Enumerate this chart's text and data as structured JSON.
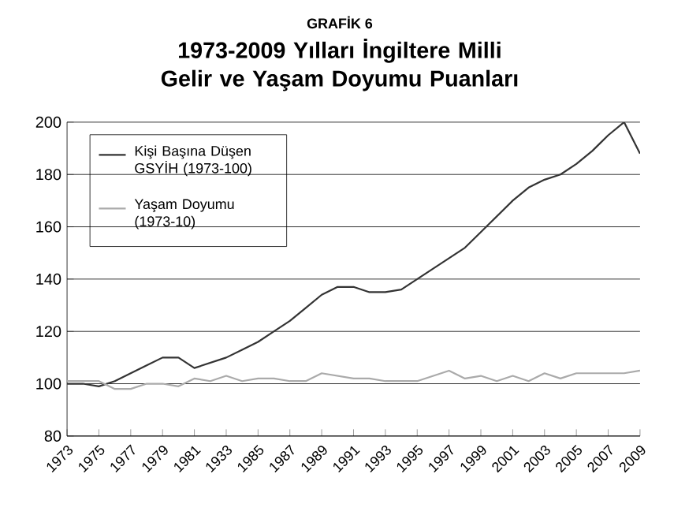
{
  "chart_data": {
    "type": "line",
    "title": "GRAFİK 6",
    "subtitle": "1973-2009 Yılları İngiltere Milli Gelir ve Yaşam Doyumu Puanları",
    "categories": [
      "1973",
      null,
      "1975",
      null,
      "1977",
      null,
      "1979",
      null,
      "1981",
      null,
      "1933",
      null,
      "1985",
      null,
      "1987",
      null,
      "1989",
      null,
      "1991",
      null,
      "1993",
      null,
      "1995",
      null,
      "1997",
      null,
      "1999",
      null,
      "2001",
      null,
      "2003",
      null,
      "2005",
      null,
      "2007",
      null,
      "2009"
    ],
    "series": [
      {
        "name": "Kişi Başına Düşen GSYİH (1973-100)",
        "color": "#333333",
        "values": [
          100,
          100,
          99,
          101,
          104,
          107,
          110,
          110,
          106,
          108,
          110,
          113,
          116,
          120,
          124,
          129,
          134,
          137,
          137,
          135,
          135,
          136,
          140,
          144,
          148,
          152,
          158,
          164,
          170,
          175,
          178,
          180,
          184,
          189,
          195,
          200,
          188
        ]
      },
      {
        "name": "Yaşam Doyumu (1973-10)",
        "color": "#aaaaaa",
        "values": [
          101,
          101,
          101,
          98,
          98,
          100,
          100,
          99,
          102,
          101,
          103,
          101,
          102,
          102,
          101,
          101,
          104,
          103,
          102,
          102,
          101,
          101,
          101,
          103,
          105,
          102,
          103,
          101,
          103,
          101,
          104,
          102,
          104,
          104,
          104,
          104,
          105
        ]
      }
    ],
    "ylim": [
      80,
      200
    ],
    "yticks": [
      80,
      100,
      120,
      140,
      160,
      180,
      200
    ],
    "grid": "y",
    "legend": "top left",
    "marker": "none",
    "line_style": "solid"
  }
}
